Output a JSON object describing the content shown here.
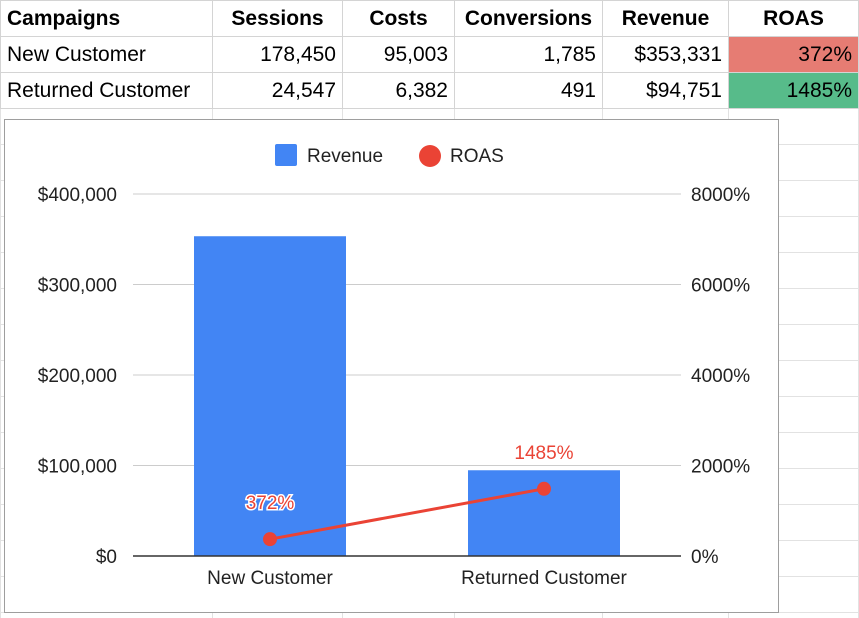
{
  "table": {
    "headers": [
      "Campaigns",
      "Sessions",
      "Costs",
      "Conversions",
      "Revenue",
      "ROAS"
    ],
    "rows": [
      {
        "campaign": "New Customer",
        "sessions": "178,450",
        "costs": "95,003",
        "conversions": "1,785",
        "revenue": "$353,331",
        "roas": "372%"
      },
      {
        "campaign": "Returned Customer",
        "sessions": "24,547",
        "costs": "6,382",
        "conversions": "491",
        "revenue": "$94,751",
        "roas": "1485%"
      }
    ]
  },
  "colors": {
    "bar": "#4285f4",
    "line": "#ea4335",
    "roas_bad": "#e67c73",
    "roas_good": "#57bb8a"
  },
  "chart_data": {
    "type": "bar",
    "categories": [
      "New Customer",
      "Returned Customer"
    ],
    "series": [
      {
        "name": "Revenue",
        "type": "bar",
        "axis": "left",
        "values": [
          353331,
          94751
        ]
      },
      {
        "name": "ROAS",
        "type": "line",
        "axis": "right",
        "values": [
          372,
          1485
        ],
        "labels": [
          "372%",
          "1485%"
        ]
      }
    ],
    "legend": [
      "Revenue",
      "ROAS"
    ],
    "legend_position": "top",
    "left_axis": {
      "min": 0,
      "max": 400000,
      "ticks": [
        "$0",
        "$100,000",
        "$200,000",
        "$300,000",
        "$400,000"
      ],
      "tick_values": [
        0,
        100000,
        200000,
        300000,
        400000
      ]
    },
    "right_axis": {
      "min": 0,
      "max": 8000,
      "ticks": [
        "0%",
        "2000%",
        "4000%",
        "6000%",
        "8000%"
      ],
      "tick_values": [
        0,
        2000,
        4000,
        6000,
        8000
      ]
    },
    "grid": true
  }
}
